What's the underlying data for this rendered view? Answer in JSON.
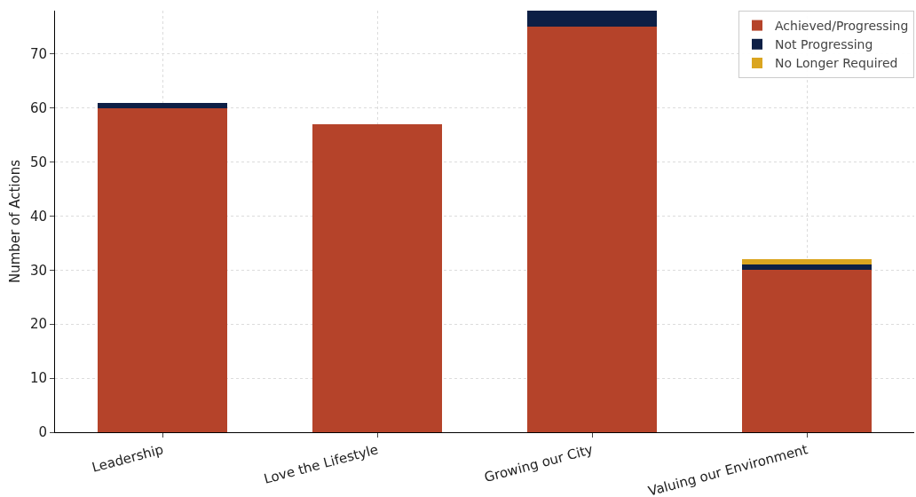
{
  "chart_data": {
    "type": "bar",
    "ylabel": "Number of Actions",
    "categories": [
      "Leadership",
      "Love the Lifestyle",
      "Growing our City",
      "Valuing our Environment"
    ],
    "stacked": true,
    "series": [
      {
        "name": "Achieved/Progressing",
        "color": "#b5432a",
        "values": [
          60,
          57,
          75,
          30
        ]
      },
      {
        "name": "Not Progressing",
        "color": "#0d1f45",
        "values": [
          1,
          0,
          3,
          1
        ]
      },
      {
        "name": "No Longer Required",
        "color": "#daa520",
        "values": [
          0,
          0,
          0,
          1
        ]
      }
    ],
    "ylim": [
      0,
      78
    ],
    "yticks": [
      0,
      10,
      20,
      30,
      40,
      50,
      60,
      70
    ],
    "grid": true,
    "legend": "top right"
  }
}
